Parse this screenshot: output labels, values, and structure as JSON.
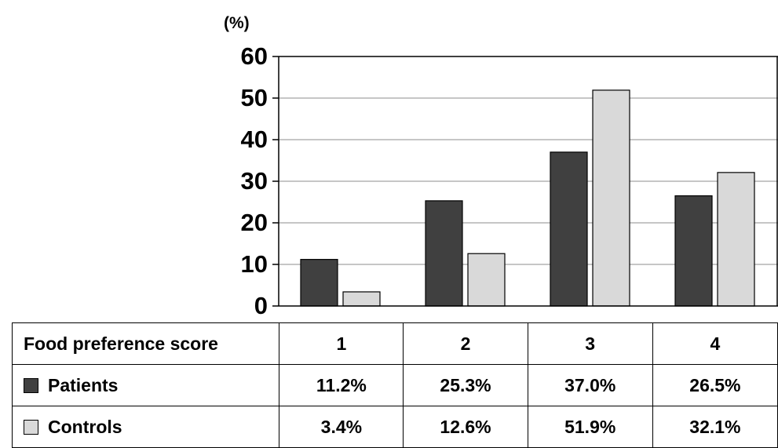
{
  "chart_data": {
    "type": "bar",
    "y_unit": "(%)",
    "ylim": [
      0,
      60
    ],
    "yticks": [
      0,
      10,
      20,
      30,
      40,
      50,
      60
    ],
    "grid": true,
    "categories": [
      "1",
      "2",
      "3",
      "4"
    ],
    "series": [
      {
        "name": "Patients",
        "color": "#404040",
        "values": [
          11.2,
          25.3,
          37.0,
          26.5
        ]
      },
      {
        "name": "Controls",
        "color": "#d9d9d9",
        "values": [
          3.4,
          12.6,
          51.9,
          32.1
        ]
      }
    ],
    "table": {
      "header_label": "Food preference score",
      "rows": [
        {
          "label": "Patients",
          "cells": [
            "11.2%",
            "25.3%",
            "37.0%",
            "26.5%"
          ]
        },
        {
          "label": "Controls",
          "cells": [
            "3.4%",
            "12.6%",
            "51.9%",
            "32.1%"
          ]
        }
      ]
    }
  }
}
